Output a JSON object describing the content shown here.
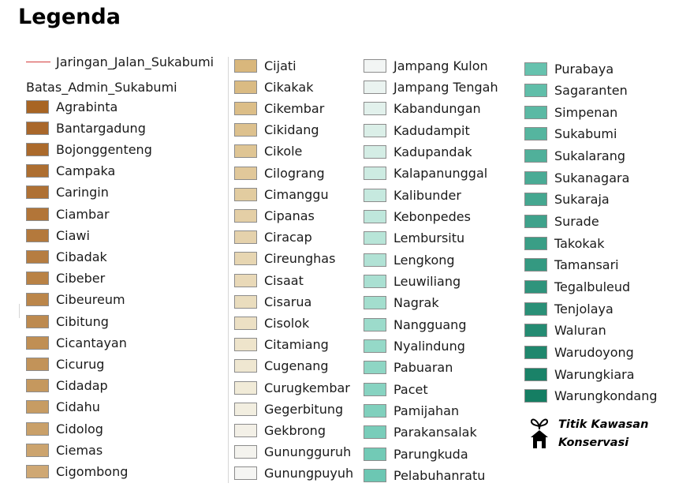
{
  "title": "Legenda",
  "road_layer": {
    "label": "Jaringan_Jalan_Sukabumi",
    "color": "#d43b3b"
  },
  "admin_layer": {
    "label": "Batas_Admin_Sukabumi"
  },
  "districts": [
    {
      "name": "Agrabinta",
      "color": "#a86524"
    },
    {
      "name": "Bantargadung",
      "color": "#a9672a"
    },
    {
      "name": "Bojonggenteng",
      "color": "#ab6a2c"
    },
    {
      "name": "Campaka",
      "color": "#ad6e30"
    },
    {
      "name": "Caringin",
      "color": "#af7134"
    },
    {
      "name": "Ciambar",
      "color": "#b27538"
    },
    {
      "name": "Ciawi",
      "color": "#b4793c"
    },
    {
      "name": "Cibadak",
      "color": "#b67d41"
    },
    {
      "name": "Cibeber",
      "color": "#b98245"
    },
    {
      "name": "Cibeureum",
      "color": "#bb864a"
    },
    {
      "name": "Cibitung",
      "color": "#bd8a4f"
    },
    {
      "name": "Cicantayan",
      "color": "#c08f54"
    },
    {
      "name": "Cicurug",
      "color": "#c29359"
    },
    {
      "name": "Cidadap",
      "color": "#c5985e"
    },
    {
      "name": "Cidahu",
      "color": "#c79c63"
    },
    {
      "name": "Cidolog",
      "color": "#c9a069"
    },
    {
      "name": "Ciemas",
      "color": "#cca46e"
    },
    {
      "name": "Cigombong",
      "color": "#cfa874"
    },
    {
      "name": "Cijati",
      "color": "#d9b77c"
    },
    {
      "name": "Cikakak",
      "color": "#dabb83"
    },
    {
      "name": "Cikembar",
      "color": "#dcbe88"
    },
    {
      "name": "Cikidang",
      "color": "#ddc18e"
    },
    {
      "name": "Cikole",
      "color": "#dfc594"
    },
    {
      "name": "Cilograng",
      "color": "#e1c89a"
    },
    {
      "name": "Cimanggu",
      "color": "#e2cca0"
    },
    {
      "name": "Cipanas",
      "color": "#e4cfa6"
    },
    {
      "name": "Ciracap",
      "color": "#e5d2ac"
    },
    {
      "name": "Cireunghas",
      "color": "#e7d6b2"
    },
    {
      "name": "Cisaat",
      "color": "#e9d9b8"
    },
    {
      "name": "Cisarua",
      "color": "#eaddbe"
    },
    {
      "name": "Cisolok",
      "color": "#ece0c4"
    },
    {
      "name": "Citamiang",
      "color": "#eee4cb"
    },
    {
      "name": "Cugenang",
      "color": "#efe7d1"
    },
    {
      "name": "Curugkembar",
      "color": "#f1ebd8"
    },
    {
      "name": "Gegerbitung",
      "color": "#f2eee0"
    },
    {
      "name": "Gekbrong",
      "color": "#f3f0e7"
    },
    {
      "name": "Gunungguruh",
      "color": "#f4f3ee"
    },
    {
      "name": "Gunungpuyuh",
      "color": "#f5f5f3"
    },
    {
      "name": "Jampang Kulon",
      "color": "#f2f5f4"
    },
    {
      "name": "Jampang Tengah",
      "color": "#eaf3f0"
    },
    {
      "name": "Kabandungan",
      "color": "#e2f1ec"
    },
    {
      "name": "Kadudampit",
      "color": "#dbefe8"
    },
    {
      "name": "Kadupandak",
      "color": "#d4ede5"
    },
    {
      "name": "Kalapanunggal",
      "color": "#cdebe2"
    },
    {
      "name": "Kalibunder",
      "color": "#c6e9df"
    },
    {
      "name": "Kebonpedes",
      "color": "#bfe7dc"
    },
    {
      "name": "Lembursitu",
      "color": "#b8e5d8"
    },
    {
      "name": "Lengkong",
      "color": "#b1e2d5"
    },
    {
      "name": "Leuwiliang",
      "color": "#aae0d2"
    },
    {
      "name": "Nagrak",
      "color": "#a3dece"
    },
    {
      "name": "Nangguang",
      "color": "#9cdbcb"
    },
    {
      "name": "Nyalindung",
      "color": "#95d9c8"
    },
    {
      "name": "Pabuaran",
      "color": "#8ed6c4"
    },
    {
      "name": "Pacet",
      "color": "#87d3c1"
    },
    {
      "name": "Pamijahan",
      "color": "#80d0bd"
    },
    {
      "name": "Parakansalak",
      "color": "#79cdba"
    },
    {
      "name": "Parungkuda",
      "color": "#72cab6"
    },
    {
      "name": "Pelabuhanratu",
      "color": "#6cc7b3"
    },
    {
      "name": "Purabaya",
      "color": "#66c2ae"
    },
    {
      "name": "Sagaranten",
      "color": "#60bea9"
    },
    {
      "name": "Simpenan",
      "color": "#5bb9a4"
    },
    {
      "name": "Sukabumi",
      "color": "#55b59f"
    },
    {
      "name": "Sukalarang",
      "color": "#50b09a"
    },
    {
      "name": "Sukanagara",
      "color": "#4aab95"
    },
    {
      "name": "Sukaraja",
      "color": "#45a790"
    },
    {
      "name": "Surade",
      "color": "#3fa28b"
    },
    {
      "name": "Takokak",
      "color": "#3a9e86"
    },
    {
      "name": "Tamansari",
      "color": "#349981"
    },
    {
      "name": "Tegalbuleud",
      "color": "#2f947c"
    },
    {
      "name": "Tenjolaya",
      "color": "#2a9077"
    },
    {
      "name": "Waluran",
      "color": "#248b72"
    },
    {
      "name": "Warudoyong",
      "color": "#1f876d"
    },
    {
      "name": "Warungkiara",
      "color": "#1a8268"
    },
    {
      "name": "Warungkondang",
      "color": "#157e63"
    }
  ],
  "conservation": {
    "label_line1": "Titik Kawasan",
    "label_line2": "Konservasi",
    "icon": "sprout-house-icon"
  }
}
